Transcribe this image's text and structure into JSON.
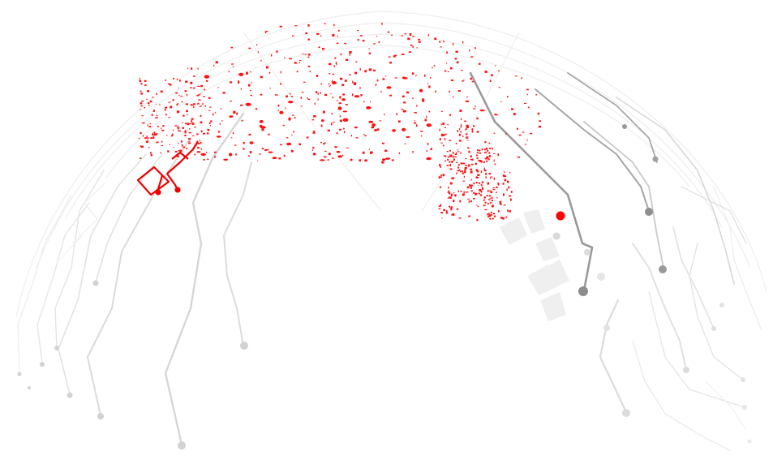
{
  "graphic": {
    "subject": "circuit-globe",
    "colors": {
      "background": "#ffffff",
      "trace_light": "#d4d4d4",
      "trace_faint": "#ececec",
      "trace_dark": "#8f8f8f",
      "accent": "#ff0000"
    }
  }
}
